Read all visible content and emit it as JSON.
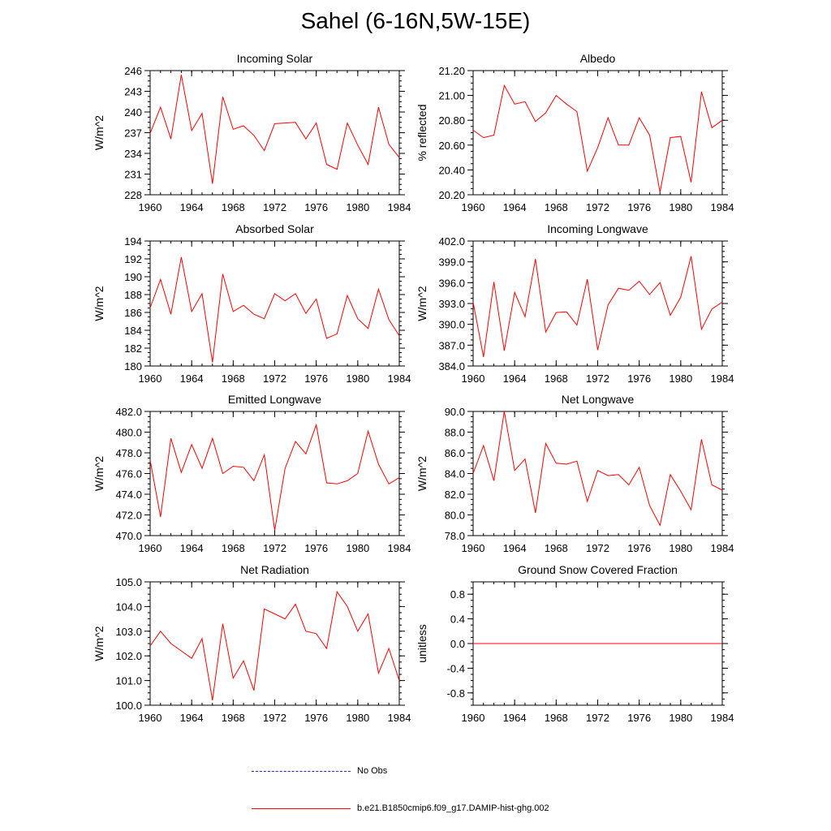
{
  "figure": {
    "title": "Sahel (6-16N,5W-15E)"
  },
  "legend": [
    {
      "label": "No Obs",
      "color": "#2a2ab8",
      "style": "dashed"
    },
    {
      "label": "b.e21.B1850cmip6.f09_g17.DAMIP-hist-ghg.002",
      "color": "#ff0000",
      "style": "solid"
    }
  ],
  "chart_data": [
    {
      "type": "line",
      "title": "Incoming Solar",
      "ylabel": "W/m^2",
      "xlim": [
        1960,
        1984
      ],
      "ylim": [
        228,
        246
      ],
      "xticks": [
        "1960",
        "1964",
        "1968",
        "1972",
        "1976",
        "1980",
        "1984"
      ],
      "yticks": [
        "228",
        "231",
        "234",
        "237",
        "240",
        "243",
        "246"
      ],
      "series": [
        {
          "color": "#ff0000",
          "x": [
            1960,
            1961,
            1962,
            1963,
            1964,
            1965,
            1966,
            1967,
            1968,
            1969,
            1970,
            1971,
            1972,
            1973,
            1974,
            1975,
            1976,
            1977,
            1978,
            1979,
            1980,
            1981,
            1982,
            1983,
            1984
          ],
          "y": [
            236.9,
            240.7,
            236.1,
            245.4,
            237.3,
            239.8,
            229.6,
            242.2,
            237.5,
            238.0,
            236.6,
            234.4,
            238.3,
            238.4,
            238.5,
            236.1,
            238.4,
            232.4,
            231.7,
            238.4,
            235.2,
            232.4,
            240.7,
            235.3,
            233.4
          ]
        }
      ]
    },
    {
      "type": "line",
      "title": "Albedo",
      "ylabel": "% reflected",
      "xlim": [
        1960,
        1984
      ],
      "ylim": [
        20.2,
        21.2
      ],
      "xticks": [
        "1960",
        "1964",
        "1968",
        "1972",
        "1976",
        "1980",
        "1984"
      ],
      "yticks": [
        "20.20",
        "20.40",
        "20.60",
        "20.80",
        "21.00",
        "21.20"
      ],
      "series": [
        {
          "color": "#ff0000",
          "x": [
            1960,
            1961,
            1962,
            1963,
            1964,
            1965,
            1966,
            1967,
            1968,
            1969,
            1970,
            1971,
            1972,
            1973,
            1974,
            1975,
            1976,
            1977,
            1978,
            1979,
            1980,
            1981,
            1982,
            1983,
            1984
          ],
          "y": [
            20.72,
            20.66,
            20.68,
            21.08,
            20.93,
            20.95,
            20.79,
            20.86,
            21.0,
            20.93,
            20.87,
            20.39,
            20.58,
            20.82,
            20.6,
            20.6,
            20.82,
            20.68,
            20.22,
            20.66,
            20.67,
            20.3,
            21.03,
            20.74,
            20.8
          ]
        }
      ]
    },
    {
      "type": "line",
      "title": "Absorbed Solar",
      "ylabel": "W/m^2",
      "xlim": [
        1960,
        1984
      ],
      "ylim": [
        180,
        194
      ],
      "xticks": [
        "1960",
        "1964",
        "1968",
        "1972",
        "1976",
        "1980",
        "1984"
      ],
      "yticks": [
        "180",
        "182",
        "184",
        "186",
        "188",
        "190",
        "192",
        "194"
      ],
      "series": [
        {
          "color": "#ff0000",
          "x": [
            1960,
            1961,
            1962,
            1963,
            1964,
            1965,
            1966,
            1967,
            1968,
            1969,
            1970,
            1971,
            1972,
            1973,
            1974,
            1975,
            1976,
            1977,
            1978,
            1979,
            1980,
            1981,
            1982,
            1983,
            1984
          ],
          "y": [
            186.5,
            189.7,
            185.8,
            192.2,
            186.1,
            188.1,
            180.4,
            190.3,
            186.1,
            186.8,
            185.8,
            185.3,
            188.1,
            187.3,
            188.1,
            185.9,
            187.5,
            183.1,
            183.6,
            187.9,
            185.3,
            184.2,
            188.6,
            185.2,
            183.4
          ]
        }
      ]
    },
    {
      "type": "line",
      "title": "Incoming Longwave",
      "ylabel": "W/m^2",
      "xlim": [
        1960,
        1984
      ],
      "ylim": [
        384,
        402
      ],
      "xticks": [
        "1960",
        "1964",
        "1968",
        "1972",
        "1976",
        "1980",
        "1984"
      ],
      "yticks": [
        "384.0",
        "387.0",
        "390.0",
        "393.0",
        "396.0",
        "399.0",
        "402.0"
      ],
      "series": [
        {
          "color": "#ff0000",
          "x": [
            1960,
            1961,
            1962,
            1963,
            1964,
            1965,
            1966,
            1967,
            1968,
            1969,
            1970,
            1971,
            1972,
            1973,
            1974,
            1975,
            1976,
            1977,
            1978,
            1979,
            1980,
            1981,
            1982,
            1983,
            1984
          ],
          "y": [
            393.2,
            385.3,
            396.1,
            386.2,
            394.6,
            391.1,
            399.4,
            388.9,
            391.7,
            391.8,
            389.9,
            396.5,
            386.3,
            392.8,
            395.2,
            394.9,
            396.2,
            394.3,
            396.0,
            391.3,
            393.9,
            399.8,
            389.3,
            392.2,
            393.2
          ]
        }
      ]
    },
    {
      "type": "line",
      "title": "Emitted Longwave",
      "ylabel": "W/m^2",
      "xlim": [
        1960,
        1984
      ],
      "ylim": [
        470,
        482
      ],
      "xticks": [
        "1960",
        "1964",
        "1968",
        "1972",
        "1976",
        "1980",
        "1984"
      ],
      "yticks": [
        "470.0",
        "472.0",
        "474.0",
        "476.0",
        "478.0",
        "480.0",
        "482.0"
      ],
      "series": [
        {
          "color": "#ff0000",
          "x": [
            1960,
            1961,
            1962,
            1963,
            1964,
            1965,
            1966,
            1967,
            1968,
            1969,
            1970,
            1971,
            1972,
            1973,
            1974,
            1975,
            1976,
            1977,
            1978,
            1979,
            1980,
            1981,
            1982,
            1983,
            1984
          ],
          "y": [
            477.3,
            471.8,
            479.4,
            476.1,
            478.8,
            476.5,
            479.4,
            476.0,
            476.7,
            476.6,
            475.3,
            477.8,
            470.5,
            476.5,
            479.1,
            477.9,
            480.7,
            475.1,
            475.0,
            475.3,
            476.0,
            480.1,
            476.9,
            475.0,
            475.6
          ]
        }
      ]
    },
    {
      "type": "line",
      "title": "Net Longwave",
      "ylabel": "W/m^2",
      "xlim": [
        1960,
        1984
      ],
      "ylim": [
        78,
        90
      ],
      "xticks": [
        "1960",
        "1964",
        "1968",
        "1972",
        "1976",
        "1980",
        "1984"
      ],
      "yticks": [
        "78.0",
        "80.0",
        "82.0",
        "84.0",
        "86.0",
        "88.0",
        "90.0"
      ],
      "series": [
        {
          "color": "#ff0000",
          "x": [
            1960,
            1961,
            1962,
            1963,
            1964,
            1965,
            1966,
            1967,
            1968,
            1969,
            1970,
            1971,
            1972,
            1973,
            1974,
            1975,
            1976,
            1977,
            1978,
            1979,
            1980,
            1981,
            1982,
            1983,
            1984
          ],
          "y": [
            84.0,
            86.7,
            83.3,
            90.0,
            84.3,
            85.4,
            80.2,
            86.9,
            85.0,
            84.9,
            85.2,
            81.3,
            84.3,
            83.8,
            83.9,
            82.9,
            84.6,
            80.9,
            79.0,
            83.9,
            82.3,
            80.5,
            87.3,
            82.9,
            82.4
          ]
        }
      ]
    },
    {
      "type": "line",
      "title": "Net Radiation",
      "ylabel": "W/m^2",
      "xlim": [
        1960,
        1984
      ],
      "ylim": [
        100,
        105
      ],
      "xticks": [
        "1960",
        "1964",
        "1968",
        "1972",
        "1976",
        "1980",
        "1984"
      ],
      "yticks": [
        "100.0",
        "101.0",
        "102.0",
        "103.0",
        "104.0",
        "105.0"
      ],
      "series": [
        {
          "color": "#ff0000",
          "x": [
            1960,
            1961,
            1962,
            1963,
            1964,
            1965,
            1966,
            1967,
            1968,
            1969,
            1970,
            1971,
            1972,
            1973,
            1974,
            1975,
            1976,
            1977,
            1978,
            1979,
            1980,
            1981,
            1982,
            1983,
            1984
          ],
          "y": [
            102.4,
            103.0,
            102.5,
            102.2,
            101.9,
            102.7,
            100.2,
            103.3,
            101.1,
            101.8,
            100.6,
            103.9,
            103.7,
            103.5,
            104.1,
            103.0,
            102.9,
            102.3,
            104.6,
            104.0,
            103.0,
            103.7,
            101.3,
            102.3,
            101.0
          ]
        }
      ]
    },
    {
      "type": "line",
      "title": "Ground Snow Covered Fraction",
      "ylabel": "unitless",
      "xlim": [
        1960,
        1984
      ],
      "ylim": [
        -1.0,
        1.0
      ],
      "xticks": [
        "1960",
        "1964",
        "1968",
        "1972",
        "1976",
        "1980",
        "1984"
      ],
      "yticks": [
        "-0.8",
        "-0.4",
        "0.0",
        "0.4",
        "0.8"
      ],
      "series": [
        {
          "color": "#ff0000",
          "x": [
            1960,
            1961,
            1962,
            1963,
            1964,
            1965,
            1966,
            1967,
            1968,
            1969,
            1970,
            1971,
            1972,
            1973,
            1974,
            1975,
            1976,
            1977,
            1978,
            1979,
            1980,
            1981,
            1982,
            1983,
            1984
          ],
          "y": [
            0,
            0,
            0,
            0,
            0,
            0,
            0,
            0,
            0,
            0,
            0,
            0,
            0,
            0,
            0,
            0,
            0,
            0,
            0,
            0,
            0,
            0,
            0,
            0,
            0
          ]
        }
      ]
    }
  ]
}
